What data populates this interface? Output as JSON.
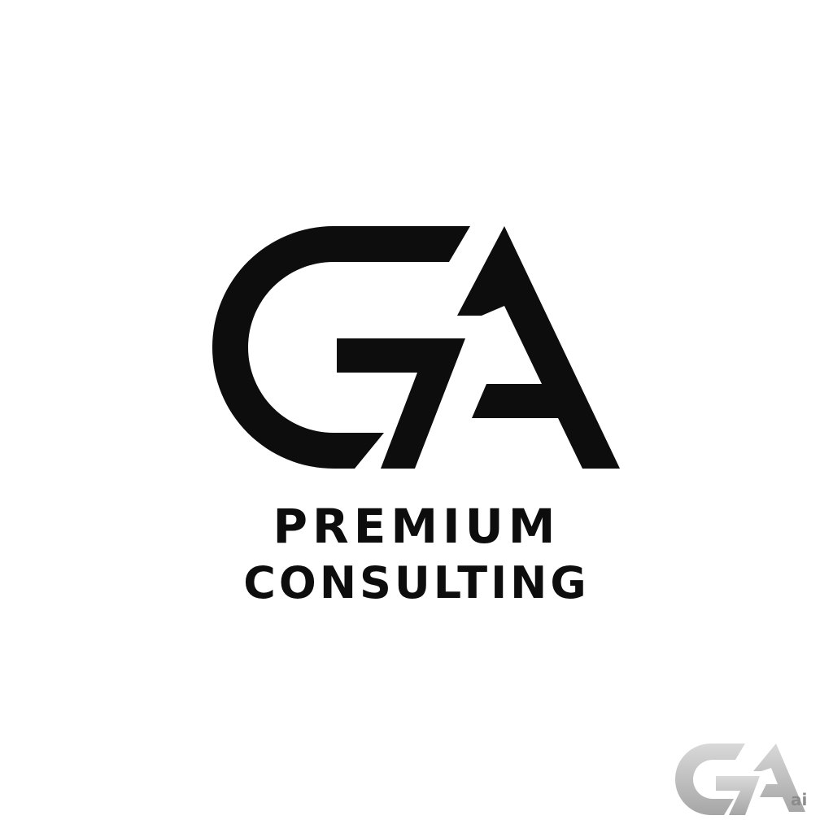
{
  "logo": {
    "monogram": "GA",
    "line1": "PREMIUM",
    "line2": "CONSULTING"
  },
  "watermark": {
    "monogram": "GA",
    "suffix": "ai"
  },
  "colors": {
    "background": "#ffffff",
    "ink": "#0d0d0d",
    "watermark_gray": "#a6a6a6",
    "watermark_light": "#d9d9d9"
  }
}
